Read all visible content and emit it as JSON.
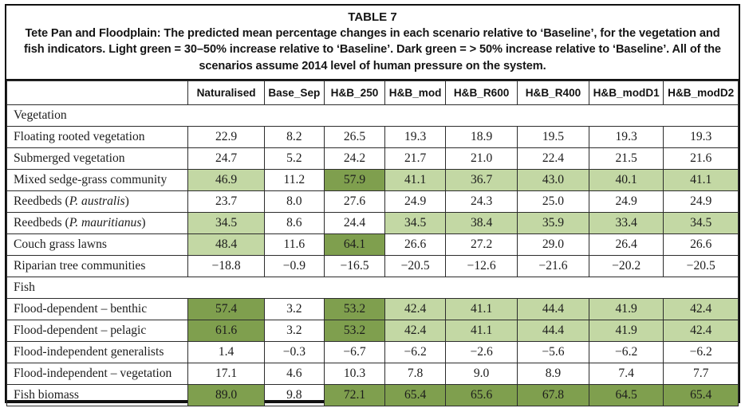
{
  "table": {
    "title": "TABLE 7",
    "caption": "Tete Pan and Floodplain: The predicted mean percentage changes in each scenario relative to ‘Baseline’, for the vegetation and fish indicators. Light green = 30–50% increase relative to ‘Baseline’. Dark green = > 50% increase relative to ‘Baseline’. All of the scenarios assume 2014 level of human pressure on the system.",
    "legend": {
      "light_green_hex": "#c3d8a4",
      "light_green_meaning": "30–50% increase relative to ‘Baseline’",
      "dark_green_hex": "#7f9f4e",
      "dark_green_meaning": "> 50% increase relative to ‘Baseline’"
    },
    "columns": [
      "Naturalised",
      "Base_Sep",
      "H&B_250",
      "H&B_mod",
      "H&B_R600",
      "H&B_R400",
      "H&B_modD1",
      "H&B_modD2"
    ],
    "rows": [
      {
        "type": "section",
        "label": "Vegetation"
      },
      {
        "type": "data",
        "label_pre": "Floating rooted vegetation",
        "label_italic": "",
        "label_post": "",
        "values": [
          "22.9",
          "8.2",
          "26.5",
          "19.3",
          "18.9",
          "19.5",
          "19.3",
          "19.3"
        ],
        "highlight": [
          0,
          0,
          0,
          0,
          0,
          0,
          0,
          0
        ]
      },
      {
        "type": "data",
        "label_pre": "Submerged vegetation",
        "label_italic": "",
        "label_post": "",
        "values": [
          "24.7",
          "5.2",
          "24.2",
          "21.7",
          "21.0",
          "22.4",
          "21.5",
          "21.6"
        ],
        "highlight": [
          0,
          0,
          0,
          0,
          0,
          0,
          0,
          0
        ]
      },
      {
        "type": "data",
        "label_pre": "Mixed sedge-grass community",
        "label_italic": "",
        "label_post": "",
        "values": [
          "46.9",
          "11.2",
          "57.9",
          "41.1",
          "36.7",
          "43.0",
          "40.1",
          "41.1"
        ],
        "highlight": [
          1,
          0,
          2,
          1,
          1,
          1,
          1,
          1
        ]
      },
      {
        "type": "data",
        "label_pre": "Reedbeds (",
        "label_italic": "P. australis",
        "label_post": ")",
        "values": [
          "23.7",
          "8.0",
          "27.6",
          "24.9",
          "24.3",
          "25.0",
          "24.9",
          "24.9"
        ],
        "highlight": [
          0,
          0,
          0,
          0,
          0,
          0,
          0,
          0
        ]
      },
      {
        "type": "data",
        "label_pre": "Reedbeds (",
        "label_italic": "P. mauritianus",
        "label_post": ")",
        "values": [
          "34.5",
          "8.6",
          "24.4",
          "34.5",
          "38.4",
          "35.9",
          "33.4",
          "34.5"
        ],
        "highlight": [
          1,
          0,
          0,
          1,
          1,
          1,
          1,
          1
        ]
      },
      {
        "type": "data",
        "label_pre": "Couch grass lawns",
        "label_italic": "",
        "label_post": "",
        "values": [
          "48.4",
          "11.6",
          "64.1",
          "26.6",
          "27.2",
          "29.0",
          "26.4",
          "26.6"
        ],
        "highlight": [
          1,
          0,
          2,
          0,
          0,
          0,
          0,
          0
        ]
      },
      {
        "type": "data",
        "label_pre": "Riparian tree communities",
        "label_italic": "",
        "label_post": "",
        "values": [
          "−18.8",
          "−0.9",
          "−16.5",
          "−20.5",
          "−12.6",
          "−21.6",
          "−20.2",
          "−20.5"
        ],
        "highlight": [
          0,
          0,
          0,
          0,
          0,
          0,
          0,
          0
        ]
      },
      {
        "type": "section",
        "label": "Fish"
      },
      {
        "type": "data",
        "label_pre": "Flood-dependent – benthic",
        "label_italic": "",
        "label_post": "",
        "values": [
          "57.4",
          "3.2",
          "53.2",
          "42.4",
          "41.1",
          "44.4",
          "41.9",
          "42.4"
        ],
        "highlight": [
          2,
          0,
          2,
          1,
          1,
          1,
          1,
          1
        ]
      },
      {
        "type": "data",
        "label_pre": "Flood-dependent – pelagic",
        "label_italic": "",
        "label_post": "",
        "values": [
          "61.6",
          "3.2",
          "53.2",
          "42.4",
          "41.1",
          "44.4",
          "41.9",
          "42.4"
        ],
        "highlight": [
          2,
          0,
          2,
          1,
          1,
          1,
          1,
          1
        ]
      },
      {
        "type": "data",
        "label_pre": "Flood-independent generalists",
        "label_italic": "",
        "label_post": "",
        "values": [
          "1.4",
          "−0.3",
          "−6.7",
          "−6.2",
          "−2.6",
          "−5.6",
          "−6.2",
          "−6.2"
        ],
        "highlight": [
          0,
          0,
          0,
          0,
          0,
          0,
          0,
          0
        ]
      },
      {
        "type": "data",
        "label_pre": "Flood-independent – vegetation",
        "label_italic": "",
        "label_post": "",
        "values": [
          "17.1",
          "4.6",
          "10.3",
          "7.8",
          "9.0",
          "8.9",
          "7.4",
          "7.7"
        ],
        "highlight": [
          0,
          0,
          0,
          0,
          0,
          0,
          0,
          0
        ]
      },
      {
        "type": "data",
        "label_pre": "Fish biomass",
        "label_italic": "",
        "label_post": "",
        "values": [
          "89.0",
          "9.8",
          "72.1",
          "65.4",
          "65.6",
          "67.8",
          "64.5",
          "65.4"
        ],
        "highlight": [
          2,
          0,
          2,
          2,
          2,
          2,
          2,
          2
        ]
      }
    ]
  }
}
